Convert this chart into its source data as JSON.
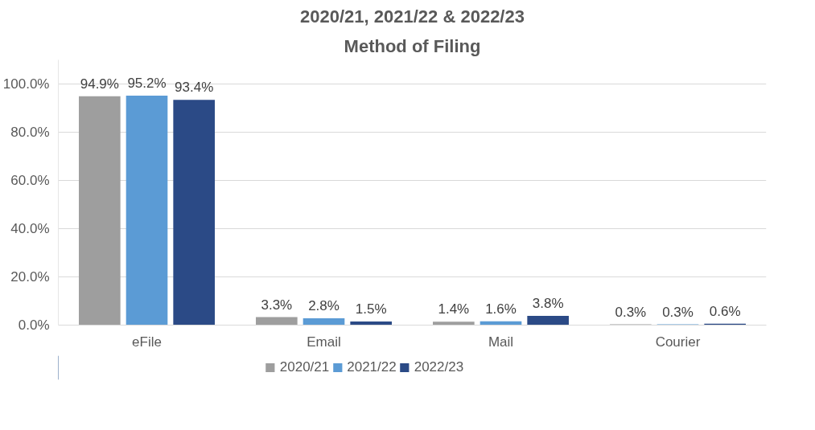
{
  "chart_data": {
    "type": "bar",
    "title": "2020/21, 2021/22 & 2022/23",
    "subtitle": "Method of Filing",
    "categories": [
      "eFile",
      "Email",
      "Mail",
      "Courier"
    ],
    "series": [
      {
        "name": "2020/21",
        "color": "#9e9e9e",
        "values": [
          94.9,
          3.3,
          1.4,
          0.3
        ],
        "value_labels": [
          "94.9%",
          "3.3%",
          "1.4%",
          "0.3%"
        ]
      },
      {
        "name": "2021/22",
        "color": "#5b9bd5",
        "values": [
          95.2,
          2.8,
          1.6,
          0.3
        ],
        "value_labels": [
          "95.2%",
          "2.8%",
          "1.6%",
          "0.3%"
        ]
      },
      {
        "name": "2022/23",
        "color": "#2b4a86",
        "values": [
          93.4,
          1.5,
          3.8,
          0.6
        ],
        "value_labels": [
          "93.4%",
          "1.5%",
          "3.8%",
          "0.6%"
        ]
      }
    ],
    "ylim": [
      0,
      110
    ],
    "yticks": [
      {
        "value": 0,
        "label": "0.0%"
      },
      {
        "value": 20,
        "label": "20.0%"
      },
      {
        "value": 40,
        "label": "40.0%"
      },
      {
        "value": 60,
        "label": "60.0%"
      },
      {
        "value": 80,
        "label": "80.0%"
      },
      {
        "value": 100,
        "label": "100.0%"
      }
    ],
    "grid": "y",
    "legend": "bottom"
  }
}
